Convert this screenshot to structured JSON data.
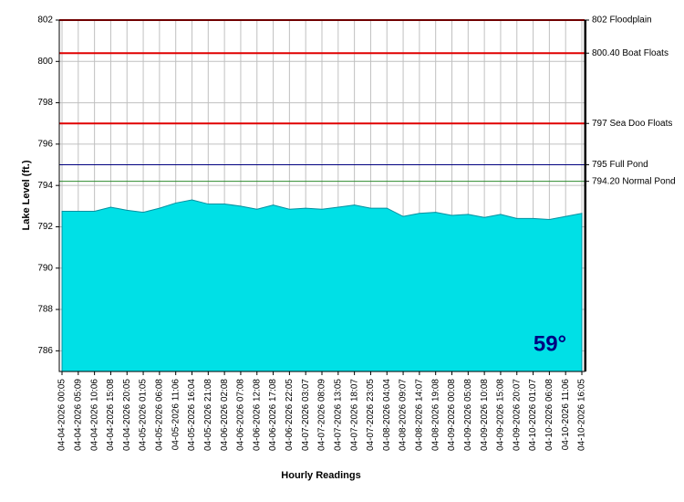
{
  "chart_data": {
    "type": "area",
    "x_label": "Hourly Readings",
    "y_label": "Lake Level (ft.)",
    "color": "#00e0e6",
    "grid": true,
    "ylim": [
      785,
      802
    ],
    "yticks": [
      786,
      788,
      790,
      792,
      794,
      796,
      798,
      800,
      802
    ],
    "categories": [
      "04-04-2026 00:05",
      "04-04-2026 05:09",
      "04-04-2026 10:06",
      "04-04-2026 15:08",
      "04-04-2026 20:05",
      "04-05-2026 01:05",
      "04-05-2026 06:08",
      "04-05-2026 11:06",
      "04-05-2026 16:04",
      "04-05-2026 21:08",
      "04-06-2026 02:08",
      "04-06-2026 07:08",
      "04-06-2026 12:08",
      "04-06-2026 17:08",
      "04-06-2026 22:05",
      "04-07-2026 03:07",
      "04-07-2026 08:09",
      "04-07-2026 13:05",
      "04-07-2026 18:07",
      "04-07-2026 23:05",
      "04-08-2026 04:04",
      "04-08-2026 09:07",
      "04-08-2026 14:07",
      "04-08-2026 19:08",
      "04-09-2026 00:08",
      "04-09-2026 05:08",
      "04-09-2026 10:08",
      "04-09-2026 15:08",
      "04-09-2026 20:07",
      "04-10-2026 01:07",
      "04-10-2026 06:08",
      "04-10-2026 11:06",
      "04-10-2026 16:05"
    ],
    "values": [
      792.75,
      792.75,
      792.75,
      792.95,
      792.8,
      792.7,
      792.9,
      793.15,
      793.3,
      793.1,
      793.1,
      793.0,
      792.85,
      793.05,
      792.85,
      792.9,
      792.85,
      792.95,
      793.05,
      792.9,
      792.9,
      792.5,
      792.65,
      792.7,
      792.55,
      792.6,
      792.45,
      792.6,
      792.4,
      792.4,
      792.35,
      792.5,
      792.65
    ],
    "reference_lines": [
      {
        "value": 802,
        "label": "802 Floodplain",
        "color": "#e00000"
      },
      {
        "value": 800.4,
        "label": "800.40 Boat Floats",
        "color": "#e00000"
      },
      {
        "value": 797,
        "label": "797 Sea Doo Floats",
        "color": "#e00000"
      },
      {
        "value": 795,
        "label": "795 Full Pond",
        "color": "#000080"
      },
      {
        "value": 794.2,
        "label": "794.20 Normal Pond",
        "color": "#2e8b2e"
      }
    ],
    "badge": "59°"
  }
}
